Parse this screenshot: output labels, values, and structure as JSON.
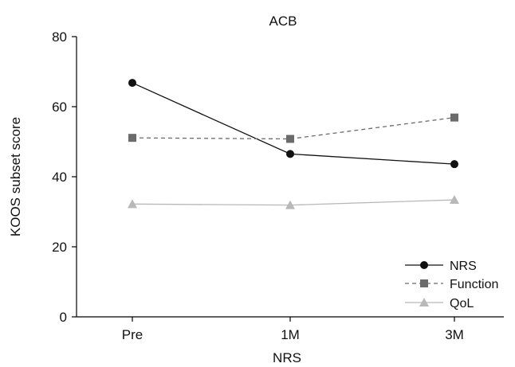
{
  "chart_data": {
    "type": "line",
    "title": "ACB",
    "xlabel": "NRS",
    "ylabel": "KOOS subset score",
    "categories": [
      "Pre",
      "1M",
      "3M"
    ],
    "ylim": [
      0,
      80
    ],
    "yticks": [
      0,
      20,
      40,
      60,
      80
    ],
    "grid": false,
    "legend_position": "bottom-right",
    "series": [
      {
        "name": "NRS",
        "values": [
          66.8,
          46.5,
          43.6
        ],
        "color": "#111111",
        "dash": "solid",
        "marker": "circle"
      },
      {
        "name": "Function",
        "values": [
          51.1,
          50.8,
          56.9
        ],
        "color": "#6b6b6b",
        "dash": "dashed",
        "marker": "square"
      },
      {
        "name": "QoL",
        "values": [
          32.2,
          31.9,
          33.4
        ],
        "color": "#b8b8b8",
        "dash": "solid",
        "marker": "triangle"
      }
    ]
  }
}
